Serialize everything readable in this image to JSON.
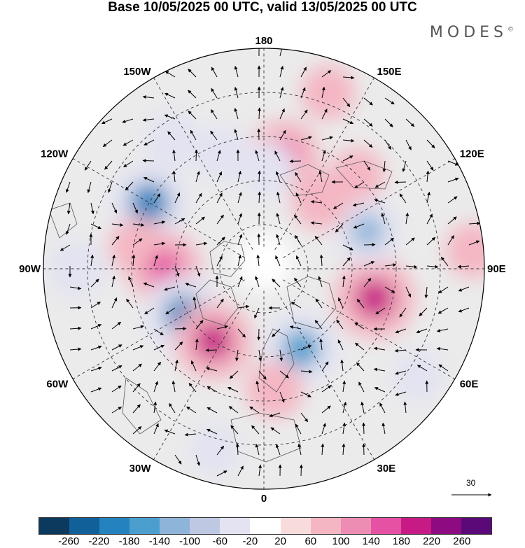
{
  "title": "Base 10/05/2025 00 UTC, valid 13/05/2025 00 UTC",
  "brand": "MODES",
  "brand_mark": "©",
  "longitude_labels": [
    {
      "text": "180",
      "lon": 180,
      "style": "normal"
    },
    {
      "text": "150E",
      "lon": 150,
      "style": "bold"
    },
    {
      "text": "120E",
      "lon": 120,
      "style": "bold"
    },
    {
      "text": "90E",
      "lon": 90,
      "style": "bold"
    },
    {
      "text": "60E",
      "lon": 60,
      "style": "bold"
    },
    {
      "text": "30E",
      "lon": 30,
      "style": "bold"
    },
    {
      "text": "0",
      "lon": 0,
      "style": "bold"
    },
    {
      "text": "30W",
      "lon": -30,
      "style": "bold"
    },
    {
      "text": "60W",
      "lon": -60,
      "style": "bold"
    },
    {
      "text": "90W",
      "lon": -90,
      "style": "bold"
    },
    {
      "text": "120W",
      "lon": -120,
      "style": "bold"
    },
    {
      "text": "150W",
      "lon": -150,
      "style": "bold"
    }
  ],
  "reference_vector": {
    "label": "30"
  },
  "colorbar": {
    "colors": [
      "#0b3a5e",
      "#11609a",
      "#2483bf",
      "#4a9fcf",
      "#8fb4d9",
      "#bfc8e2",
      "#e3e3f1",
      "#ffffff",
      "#f8dcdc",
      "#f4b6c2",
      "#ee8db3",
      "#e552a3",
      "#c81a85",
      "#8e0a80",
      "#5a0a78"
    ],
    "ticks": [
      "-260",
      "-220",
      "-180",
      "-140",
      "-100",
      "-60",
      "-20",
      "20",
      "60",
      "100",
      "140",
      "180",
      "220",
      "260"
    ]
  },
  "anomalies": [
    {
      "lon": 170,
      "r": 0.52,
      "value": 140
    },
    {
      "lon": -160,
      "r": 0.55,
      "value": -60
    },
    {
      "lon": -145,
      "r": 0.72,
      "value": -60
    },
    {
      "lon": -120,
      "r": 0.6,
      "value": -200
    },
    {
      "lon": -100,
      "r": 0.58,
      "value": 60
    },
    {
      "lon": -90,
      "r": 0.45,
      "value": 160
    },
    {
      "lon": -90,
      "r": 0.85,
      "value": -80
    },
    {
      "lon": -60,
      "r": 0.42,
      "value": -200
    },
    {
      "lon": -35,
      "r": 0.4,
      "value": 180
    },
    {
      "lon": 25,
      "r": 0.4,
      "value": -180
    },
    {
      "lon": 5,
      "r": 0.55,
      "value": 60
    },
    {
      "lon": 75,
      "r": 0.52,
      "value": 200
    },
    {
      "lon": 110,
      "r": 0.5,
      "value": -120
    },
    {
      "lon": 140,
      "r": 0.4,
      "value": 60
    },
    {
      "lon": 135,
      "r": 0.6,
      "value": 40
    },
    {
      "lon": 178,
      "r": 0.45,
      "value": -60
    },
    {
      "lon": 55,
      "r": 0.85,
      "value": -40
    },
    {
      "lon": -15,
      "r": 0.85,
      "value": -40
    },
    {
      "lon": 160,
      "r": 0.85,
      "value": 40
    },
    {
      "lon": 95,
      "r": 0.95,
      "value": 40
    }
  ]
}
